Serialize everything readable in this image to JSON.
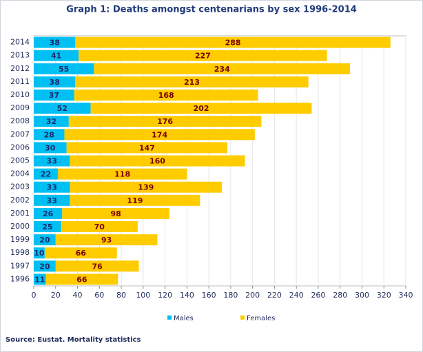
{
  "chart_data": {
    "type": "stacked_bar_horizontal",
    "title": "Graph 1: Deaths amongst centenarians by sex 1996-2014",
    "source": "Source: Eustat. Mortality statistics",
    "categories": [
      "2014",
      "2013",
      "2012",
      "2011",
      "2010",
      "2009",
      "2008",
      "2007",
      "2006",
      "2005",
      "2004",
      "2003",
      "2002",
      "2001",
      "2000",
      "1999",
      "1998",
      "1997",
      "1996"
    ],
    "series": [
      {
        "name": "Males",
        "color": "#00bff3",
        "label_color": "#1a2a6c",
        "values": [
          38,
          41,
          55,
          38,
          37,
          52,
          32,
          28,
          30,
          33,
          22,
          33,
          33,
          26,
          25,
          20,
          10,
          20,
          11
        ]
      },
      {
        "name": "Females",
        "color": "#ffcc00",
        "label_color": "#7a0000",
        "values": [
          288,
          227,
          234,
          213,
          168,
          202,
          176,
          174,
          147,
          160,
          118,
          139,
          119,
          98,
          70,
          93,
          66,
          76,
          66
        ]
      }
    ],
    "xlim": [
      0,
      340
    ],
    "xticks": [
      0,
      20,
      40,
      60,
      80,
      100,
      120,
      140,
      160,
      180,
      200,
      220,
      240,
      260,
      280,
      300,
      320,
      340
    ],
    "grid": true,
    "legend": "bottom"
  }
}
